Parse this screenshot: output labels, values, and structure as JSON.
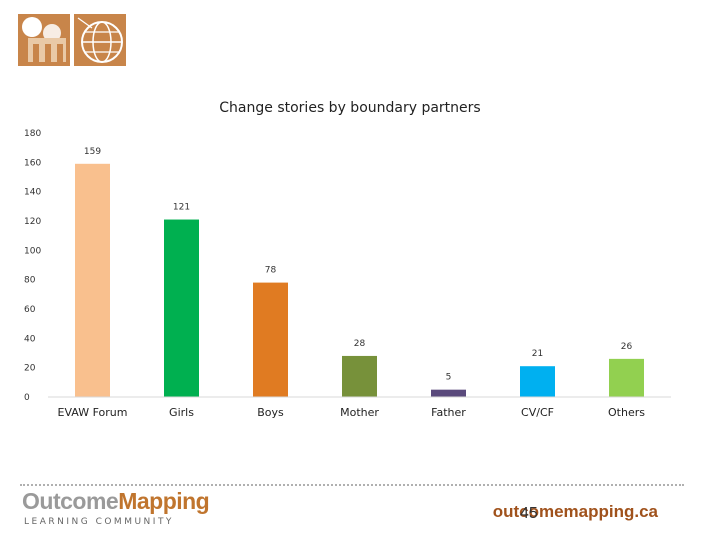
{
  "logo": {
    "icon_left": "om-letter-logo",
    "icon_right": "globe-logo",
    "color": "#c8854a"
  },
  "footer": {
    "brand_part1": "Outcome",
    "brand_part2": "Mapping",
    "subtitle": "LEARNING  COMMUNITY",
    "url": "outcomemapping.ca",
    "page": "45"
  },
  "chart_data": {
    "type": "bar",
    "title": "Change stories by boundary partners",
    "categories": [
      "EVAW Forum",
      "Girls",
      "Boys",
      "Mother",
      "Father",
      "CV/CF",
      "Others"
    ],
    "values": [
      159,
      121,
      78,
      28,
      5,
      21,
      26
    ],
    "colors": [
      "#f9c08e",
      "#00b050",
      "#e07b22",
      "#77913a",
      "#5a4a7c",
      "#00b0f0",
      "#92d050"
    ],
    "ylim": [
      0,
      180
    ],
    "yticks": [
      0,
      20,
      40,
      60,
      80,
      100,
      120,
      140,
      160,
      180
    ],
    "grid": false,
    "legend": "none"
  }
}
